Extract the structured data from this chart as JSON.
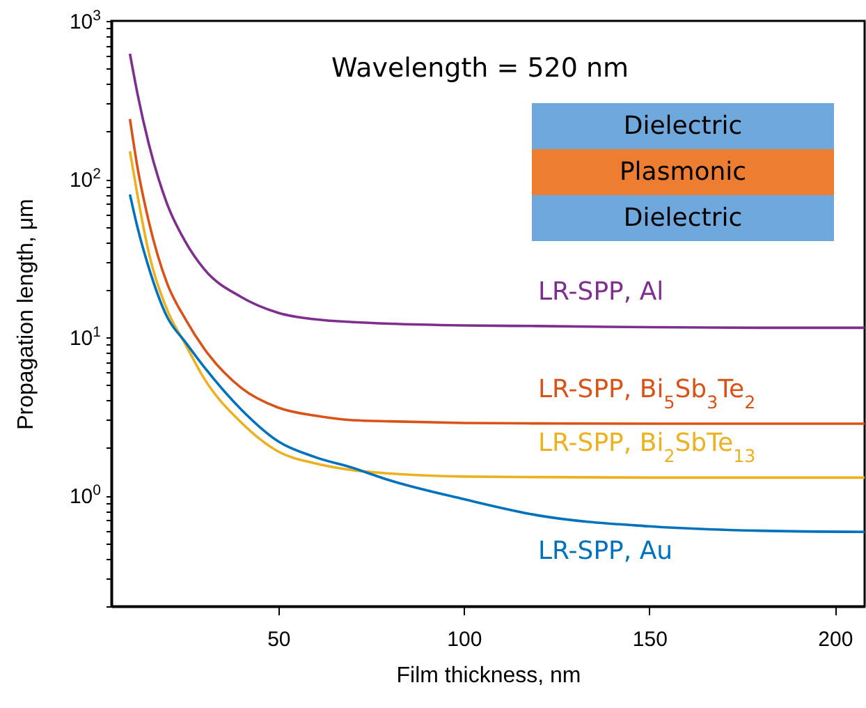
{
  "chart_data": {
    "type": "line",
    "xlabel": "Film thickness, nm",
    "ylabel": "Propagation length, μm",
    "log": true,
    "annotations": [
      "Wavelength = 520 nm",
      "Dielectric",
      "Plasmonic",
      "Dielectric"
    ],
    "x": [
      10,
      12,
      15,
      20,
      25,
      30,
      40,
      50,
      60,
      70,
      80,
      100,
      120,
      150,
      180,
      208
    ],
    "series": [
      {
        "name": "LR-SPP, Al",
        "color": "#7e2f8e",
        "values": [
          620,
          350,
          170,
          70,
          40,
          27,
          18,
          14.3,
          13,
          12.5,
          12.2,
          11.9,
          11.8,
          11.6,
          11.5,
          11.5
        ]
      },
      {
        "name": "LR-SPP, Bi$_{5}$Sb$_{3}$Te$_{2}$",
        "color": "#d95319",
        "values": [
          240,
          120,
          55,
          22,
          13,
          8.5,
          4.8,
          3.6,
          3.2,
          3.0,
          2.95,
          2.88,
          2.86,
          2.85,
          2.85,
          2.85
        ]
      },
      {
        "name": "LR-SPP, Bi$_{2}$SbTe$_{13}$",
        "color": "#edb120",
        "values": [
          150,
          80,
          35,
          15,
          9,
          5.5,
          2.9,
          1.9,
          1.6,
          1.45,
          1.38,
          1.32,
          1.31,
          1.3,
          1.3,
          1.3
        ]
      },
      {
        "name": "LR-SPP, Au",
        "color": "#0072bd",
        "values": [
          80,
          50,
          28,
          13.5,
          9.3,
          6.5,
          3.5,
          2.2,
          1.75,
          1.5,
          1.25,
          0.95,
          0.75,
          0.64,
          0.6,
          0.59
        ]
      }
    ],
    "xlim": [
      5,
      208
    ],
    "ylim": [
      0.2,
      1000
    ],
    "xticks": [
      50,
      100,
      150,
      200
    ],
    "yticks": [
      {
        "value": 0.2,
        "label": null
      },
      {
        "value": 0.3,
        "label": null
      },
      {
        "value": 0.4,
        "label": null
      },
      {
        "value": 0.5,
        "label": null
      },
      {
        "value": 0.6,
        "label": null
      },
      {
        "value": 0.7,
        "label": null
      },
      {
        "value": 0.8,
        "label": null
      },
      {
        "value": 0.9,
        "label": null
      },
      {
        "value": 1,
        "label": "10$^{0}$"
      },
      {
        "value": 2,
        "label": null
      },
      {
        "value": 3,
        "label": null
      },
      {
        "value": 4,
        "label": null
      },
      {
        "value": 5,
        "label": null
      },
      {
        "value": 6,
        "label": null
      },
      {
        "value": 7,
        "label": null
      },
      {
        "value": 8,
        "label": null
      },
      {
        "value": 9,
        "label": null
      },
      {
        "value": 10,
        "label": "10$^{1}$"
      },
      {
        "value": 20,
        "label": null
      },
      {
        "value": 30,
        "label": null
      },
      {
        "value": 40,
        "label": null
      },
      {
        "value": 50,
        "label": null
      },
      {
        "value": 60,
        "label": null
      },
      {
        "value": 70,
        "label": null
      },
      {
        "value": 80,
        "label": null
      },
      {
        "value": 90,
        "label": null
      },
      {
        "value": 100,
        "label": "10$^{2}$"
      },
      {
        "value": 200,
        "label": null
      },
      {
        "value": 300,
        "label": null
      },
      {
        "value": 400,
        "label": null
      },
      {
        "value": 500,
        "label": null
      },
      {
        "value": 600,
        "label": null
      },
      {
        "value": 700,
        "label": null
      },
      {
        "value": 800,
        "label": null
      },
      {
        "value": 900,
        "label": null
      },
      {
        "value": 1000,
        "label": "10$^{3}$"
      }
    ]
  }
}
